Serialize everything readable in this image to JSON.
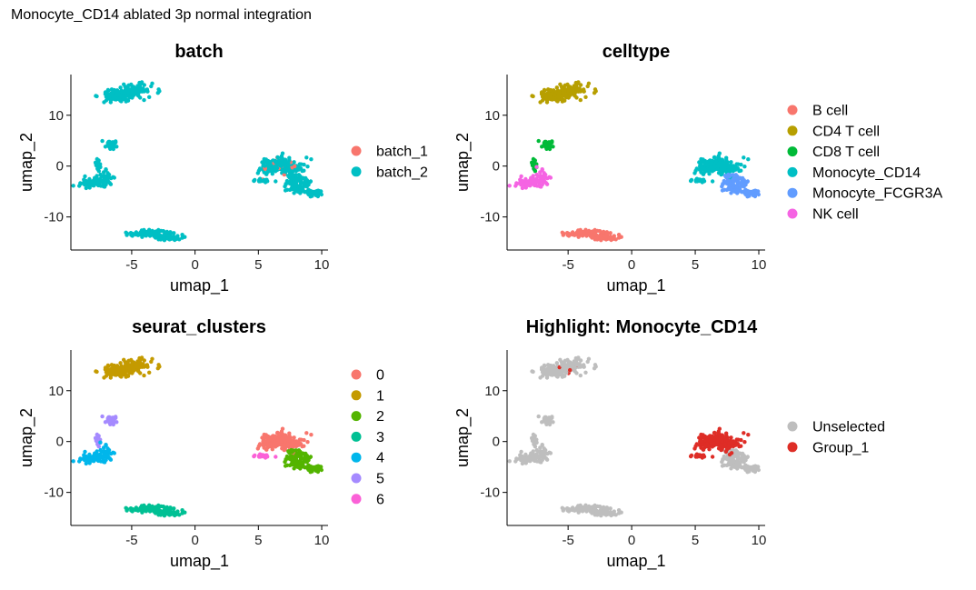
{
  "page": {
    "title": "Monocyte_CD14 ablated 3p normal integration"
  },
  "chart_data": [
    {
      "type": "scatter",
      "title": "batch",
      "xlabel": "umap_1",
      "ylabel": "umap_2",
      "xlim": [
        -9.8,
        10.5
      ],
      "ylim": [
        -16.5,
        18
      ],
      "xticks": [
        -5,
        0,
        5,
        10
      ],
      "yticks": [
        -10,
        0,
        10
      ],
      "grid": false,
      "legend": "right",
      "series": [
        {
          "name": "batch_1",
          "color": "#F8766D"
        },
        {
          "name": "batch_2",
          "color": "#00BFC4"
        }
      ]
    },
    {
      "type": "scatter",
      "title": "celltype",
      "xlabel": "umap_1",
      "ylabel": "umap_2",
      "xlim": [
        -9.8,
        10.5
      ],
      "ylim": [
        -16.5,
        18
      ],
      "xticks": [
        -5,
        0,
        5,
        10
      ],
      "yticks": [
        -10,
        0,
        10
      ],
      "grid": false,
      "legend": "right",
      "series": [
        {
          "name": "B cell",
          "color": "#F8766D"
        },
        {
          "name": "CD4 T cell",
          "color": "#B79F00"
        },
        {
          "name": "CD8 T cell",
          "color": "#00BA38"
        },
        {
          "name": "Monocyte_CD14",
          "color": "#00BFC4"
        },
        {
          "name": "Monocyte_FCGR3A",
          "color": "#619CFF"
        },
        {
          "name": "NK cell",
          "color": "#F564E3"
        }
      ]
    },
    {
      "type": "scatter",
      "title": "seurat_clusters",
      "xlabel": "umap_1",
      "ylabel": "umap_2",
      "xlim": [
        -9.8,
        10.5
      ],
      "ylim": [
        -16.5,
        18
      ],
      "xticks": [
        -5,
        0,
        5,
        10
      ],
      "yticks": [
        -10,
        0,
        10
      ],
      "grid": false,
      "legend": "right",
      "series": [
        {
          "name": "0",
          "color": "#F8766D"
        },
        {
          "name": "1",
          "color": "#C49A00"
        },
        {
          "name": "2",
          "color": "#53B400"
        },
        {
          "name": "3",
          "color": "#00C094"
        },
        {
          "name": "4",
          "color": "#00B6EB"
        },
        {
          "name": "5",
          "color": "#A58AFF"
        },
        {
          "name": "6",
          "color": "#FB61D7"
        }
      ]
    },
    {
      "type": "scatter",
      "title": "Highlight: Monocyte_CD14",
      "xlabel": "umap_1",
      "ylabel": "umap_2",
      "xlim": [
        -9.8,
        10.5
      ],
      "ylim": [
        -16.5,
        18
      ],
      "xticks": [
        -5,
        0,
        5,
        10
      ],
      "yticks": [
        -10,
        0,
        10
      ],
      "grid": false,
      "legend": "right",
      "series": [
        {
          "name": "Unselected",
          "color": "#BEBEBE"
        },
        {
          "name": "Group_1",
          "color": "#DE2D26"
        }
      ]
    }
  ]
}
